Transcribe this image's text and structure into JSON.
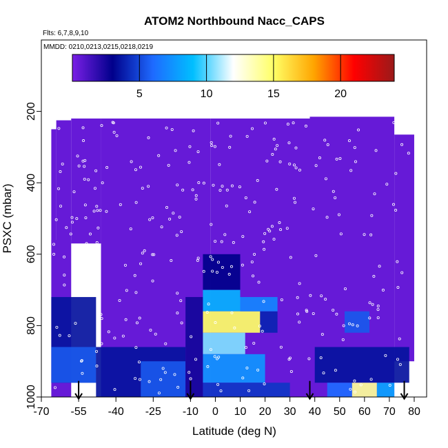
{
  "chart_data": {
    "type": "heatmap",
    "title": "ATOM2 Northbound Nacc_CAPS",
    "flights_label": "Flts: 6,7,8,9,10",
    "mmdd_label": "MMDD: 0210,0213,0215,0218,0219",
    "xlabel": "Latitude (deg N)",
    "ylabel": "PSXC (mbar)",
    "xlim": [
      -70,
      85
    ],
    "ylim": [
      1000,
      0
    ],
    "x_ticks": [
      -70,
      -55,
      -40,
      -25,
      -10,
      0,
      10,
      20,
      30,
      40,
      50,
      60,
      70,
      80
    ],
    "y_ticks": [
      200,
      400,
      600,
      800,
      1000
    ],
    "colorbar": {
      "range": [
        0,
        24
      ],
      "ticks": [
        5,
        10,
        15,
        20
      ],
      "colors": [
        "#7a1fe6",
        "#00008b",
        "#1e6aff",
        "#00bfff",
        "#ffffff",
        "#ffff66",
        "#ffa500",
        "#ff0000",
        "#9a1a1a"
      ]
    },
    "arrows_lat": [
      -55,
      -10,
      38,
      76
    ],
    "background_value": 0.5,
    "cells": [
      {
        "lat": [
          -66,
          -48
        ],
        "p": [
          720,
          960
        ],
        "v": 3.5
      },
      {
        "lat": [
          -66,
          -48
        ],
        "p": [
          860,
          960
        ],
        "v": 5.5
      },
      {
        "lat": [
          -48,
          -12
        ],
        "p": [
          860,
          1000
        ],
        "v": 3.5
      },
      {
        "lat": [
          -30,
          -12
        ],
        "p": [
          900,
          1000
        ],
        "v": 5.5
      },
      {
        "lat": [
          -12,
          -5
        ],
        "p": [
          720,
          1000
        ],
        "v": 2.5
      },
      {
        "lat": [
          -5,
          10
        ],
        "p": [
          600,
          700
        ],
        "v": 3.0
      },
      {
        "lat": [
          -5,
          10
        ],
        "p": [
          700,
          760
        ],
        "v": 8.5
      },
      {
        "lat": [
          -5,
          18
        ],
        "p": [
          760,
          820
        ],
        "v": 15.0
      },
      {
        "lat": [
          18,
          25
        ],
        "p": [
          760,
          820
        ],
        "v": 4.0
      },
      {
        "lat": [
          -5,
          12
        ],
        "p": [
          820,
          880
        ],
        "v": 10.5
      },
      {
        "lat": [
          -5,
          20
        ],
        "p": [
          880,
          960
        ],
        "v": 7.5
      },
      {
        "lat": [
          -5,
          30
        ],
        "p": [
          960,
          1000
        ],
        "v": 4.5
      },
      {
        "lat": [
          10,
          25
        ],
        "p": [
          720,
          760
        ],
        "v": 7.0
      },
      {
        "lat": [
          40,
          78
        ],
        "p": [
          860,
          960
        ],
        "v": 3.5
      },
      {
        "lat": [
          52,
          62
        ],
        "p": [
          760,
          820
        ],
        "v": 5.5
      },
      {
        "lat": [
          45,
          55
        ],
        "p": [
          960,
          1000
        ],
        "v": 6.0
      },
      {
        "lat": [
          55,
          65
        ],
        "p": [
          960,
          1000
        ],
        "v": 14.0
      },
      {
        "lat": [
          65,
          72
        ],
        "p": [
          960,
          1000
        ],
        "v": 8.0
      }
    ]
  }
}
